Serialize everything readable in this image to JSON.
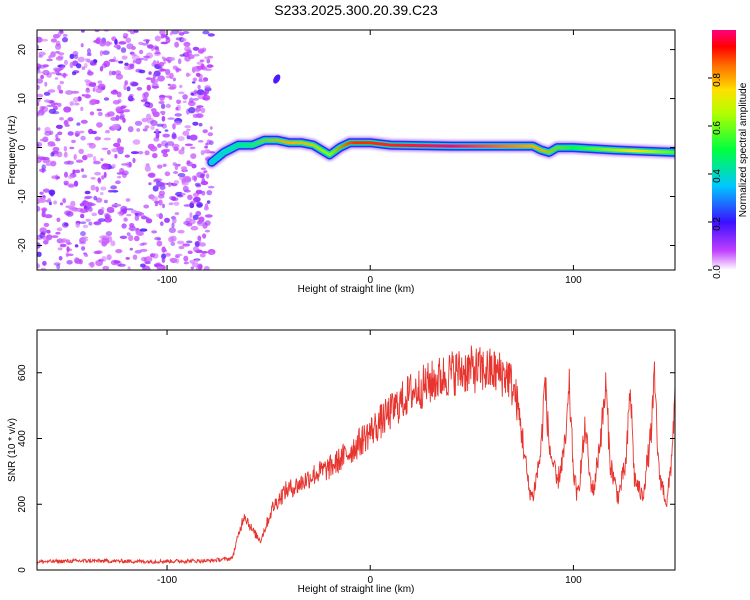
{
  "title": "S233.2025.300.20.39.C23",
  "chart_data": [
    {
      "type": "heatmap",
      "name": "spectrogram",
      "xlabel": "Height of straight line (km)",
      "ylabel": "Frequency (Hz)",
      "xlim": [
        -164,
        150
      ],
      "ylim": [
        -25,
        24
      ],
      "x_ticks": [
        -100,
        0,
        100
      ],
      "y_ticks": [
        -20,
        -10,
        0,
        10,
        20
      ],
      "colorbar": {
        "label": "Normalized spectral amplitude",
        "range": [
          0,
          1
        ],
        "ticks": [
          0.0,
          0.2,
          0.4,
          0.6,
          0.8
        ],
        "tick_labels": [
          "0.0",
          "0.2",
          "0.4",
          "0.6",
          "0.8"
        ]
      },
      "noise_region": {
        "x_range": [
          -164,
          -78
        ],
        "freq_range": [
          -25,
          24
        ],
        "amplitude": 0.15
      },
      "ridge": [
        {
          "x": -78,
          "f": -3
        },
        {
          "x": -72,
          "f": -1
        },
        {
          "x": -65,
          "f": 0.5
        },
        {
          "x": -58,
          "f": 0.5
        },
        {
          "x": -52,
          "f": 1.5
        },
        {
          "x": -46,
          "f": 1.5
        },
        {
          "x": -40,
          "f": 1
        },
        {
          "x": -34,
          "f": 1
        },
        {
          "x": -28,
          "f": 0.5
        },
        {
          "x": -24,
          "f": -0.5
        },
        {
          "x": -20,
          "f": -1.5
        },
        {
          "x": -15,
          "f": 0
        },
        {
          "x": -10,
          "f": 1
        },
        {
          "x": 0,
          "f": 1
        },
        {
          "x": 10,
          "f": 0.5
        },
        {
          "x": 40,
          "f": 0.3
        },
        {
          "x": 80,
          "f": 0.3
        },
        {
          "x": 84,
          "f": -0.5
        },
        {
          "x": 88,
          "f": -1
        },
        {
          "x": 92,
          "f": 0
        },
        {
          "x": 100,
          "f": 0
        },
        {
          "x": 120,
          "f": -0.5
        },
        {
          "x": 150,
          "f": -1
        }
      ],
      "ridge_amplitude": [
        {
          "x": -78,
          "a": 0.35
        },
        {
          "x": -60,
          "a": 0.45
        },
        {
          "x": -40,
          "a": 0.8
        },
        {
          "x": -20,
          "a": 0.6
        },
        {
          "x": -8,
          "a": 0.9
        },
        {
          "x": 0,
          "a": 0.9
        },
        {
          "x": 40,
          "a": 1.0
        },
        {
          "x": 80,
          "a": 0.8
        },
        {
          "x": 100,
          "a": 0.5
        },
        {
          "x": 130,
          "a": 0.75
        },
        {
          "x": 150,
          "a": 0.55
        }
      ],
      "side_blob": {
        "x": -46,
        "f": 14
      }
    },
    {
      "type": "line",
      "name": "snr",
      "xlabel": "Height of straight line (km)",
      "ylabel": "SNR (10 * v/v)",
      "xlim": [
        -164,
        150
      ],
      "ylim": [
        0,
        730
      ],
      "x_ticks": [
        -100,
        0,
        100
      ],
      "y_ticks": [
        0,
        200,
        400,
        600
      ],
      "series": [
        {
          "name": "SNR",
          "color": "#e8342e",
          "points": [
            [
              -164,
              25
            ],
            [
              -140,
              28
            ],
            [
              -110,
              26
            ],
            [
              -80,
              28
            ],
            [
              -68,
              35
            ],
            [
              -62,
              170
            ],
            [
              -58,
              120
            ],
            [
              -54,
              90
            ],
            [
              -48,
              190
            ],
            [
              -42,
              240
            ],
            [
              -35,
              260
            ],
            [
              -28,
              290
            ],
            [
              -20,
              310
            ],
            [
              -10,
              360
            ],
            [
              0,
              420
            ],
            [
              10,
              480
            ],
            [
              20,
              540
            ],
            [
              30,
              570
            ],
            [
              40,
              600
            ],
            [
              50,
              610
            ],
            [
              60,
              605
            ],
            [
              68,
              590
            ],
            [
              72,
              520
            ],
            [
              75,
              400
            ],
            [
              78,
              250
            ],
            [
              80,
              220
            ],
            [
              84,
              360
            ],
            [
              86,
              580
            ],
            [
              88,
              380
            ],
            [
              92,
              260
            ],
            [
              96,
              380
            ],
            [
              98,
              550
            ],
            [
              100,
              300
            ],
            [
              102,
              220
            ],
            [
              106,
              440
            ],
            [
              108,
              280
            ],
            [
              110,
              240
            ],
            [
              114,
              440
            ],
            [
              116,
              560
            ],
            [
              118,
              330
            ],
            [
              122,
              220
            ],
            [
              126,
              330
            ],
            [
              128,
              560
            ],
            [
              130,
              280
            ],
            [
              134,
              220
            ],
            [
              138,
              400
            ],
            [
              140,
              580
            ],
            [
              142,
              300
            ],
            [
              146,
              200
            ],
            [
              148,
              320
            ],
            [
              150,
              520
            ]
          ]
        }
      ]
    }
  ]
}
